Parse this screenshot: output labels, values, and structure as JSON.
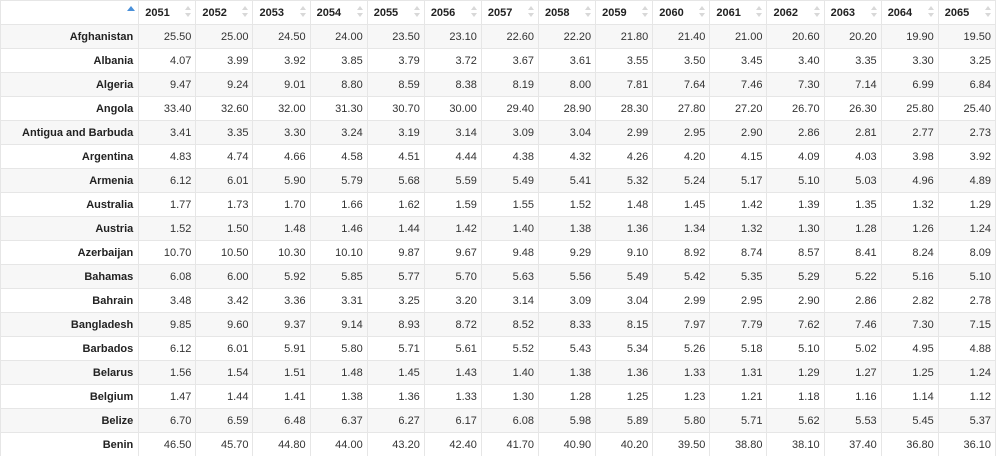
{
  "table": {
    "columns": [
      "2051",
      "2052",
      "2053",
      "2054",
      "2055",
      "2056",
      "2057",
      "2058",
      "2059",
      "2060",
      "2061",
      "2062",
      "2063",
      "2064",
      "2065"
    ],
    "rows": [
      {
        "name": "Afghanistan",
        "values": [
          "25.50",
          "25.00",
          "24.50",
          "24.00",
          "23.50",
          "23.10",
          "22.60",
          "22.20",
          "21.80",
          "21.40",
          "21.00",
          "20.60",
          "20.20",
          "19.90",
          "19.50"
        ]
      },
      {
        "name": "Albania",
        "values": [
          "4.07",
          "3.99",
          "3.92",
          "3.85",
          "3.79",
          "3.72",
          "3.67",
          "3.61",
          "3.55",
          "3.50",
          "3.45",
          "3.40",
          "3.35",
          "3.30",
          "3.25"
        ]
      },
      {
        "name": "Algeria",
        "values": [
          "9.47",
          "9.24",
          "9.01",
          "8.80",
          "8.59",
          "8.38",
          "8.19",
          "8.00",
          "7.81",
          "7.64",
          "7.46",
          "7.30",
          "7.14",
          "6.99",
          "6.84"
        ]
      },
      {
        "name": "Angola",
        "values": [
          "33.40",
          "32.60",
          "32.00",
          "31.30",
          "30.70",
          "30.00",
          "29.40",
          "28.90",
          "28.30",
          "27.80",
          "27.20",
          "26.70",
          "26.30",
          "25.80",
          "25.40"
        ]
      },
      {
        "name": "Antigua and Barbuda",
        "values": [
          "3.41",
          "3.35",
          "3.30",
          "3.24",
          "3.19",
          "3.14",
          "3.09",
          "3.04",
          "2.99",
          "2.95",
          "2.90",
          "2.86",
          "2.81",
          "2.77",
          "2.73"
        ]
      },
      {
        "name": "Argentina",
        "values": [
          "4.83",
          "4.74",
          "4.66",
          "4.58",
          "4.51",
          "4.44",
          "4.38",
          "4.32",
          "4.26",
          "4.20",
          "4.15",
          "4.09",
          "4.03",
          "3.98",
          "3.92"
        ]
      },
      {
        "name": "Armenia",
        "values": [
          "6.12",
          "6.01",
          "5.90",
          "5.79",
          "5.68",
          "5.59",
          "5.49",
          "5.41",
          "5.32",
          "5.24",
          "5.17",
          "5.10",
          "5.03",
          "4.96",
          "4.89"
        ]
      },
      {
        "name": "Australia",
        "values": [
          "1.77",
          "1.73",
          "1.70",
          "1.66",
          "1.62",
          "1.59",
          "1.55",
          "1.52",
          "1.48",
          "1.45",
          "1.42",
          "1.39",
          "1.35",
          "1.32",
          "1.29"
        ]
      },
      {
        "name": "Austria",
        "values": [
          "1.52",
          "1.50",
          "1.48",
          "1.46",
          "1.44",
          "1.42",
          "1.40",
          "1.38",
          "1.36",
          "1.34",
          "1.32",
          "1.30",
          "1.28",
          "1.26",
          "1.24"
        ]
      },
      {
        "name": "Azerbaijan",
        "values": [
          "10.70",
          "10.50",
          "10.30",
          "10.10",
          "9.87",
          "9.67",
          "9.48",
          "9.29",
          "9.10",
          "8.92",
          "8.74",
          "8.57",
          "8.41",
          "8.24",
          "8.09"
        ]
      },
      {
        "name": "Bahamas",
        "values": [
          "6.08",
          "6.00",
          "5.92",
          "5.85",
          "5.77",
          "5.70",
          "5.63",
          "5.56",
          "5.49",
          "5.42",
          "5.35",
          "5.29",
          "5.22",
          "5.16",
          "5.10"
        ]
      },
      {
        "name": "Bahrain",
        "values": [
          "3.48",
          "3.42",
          "3.36",
          "3.31",
          "3.25",
          "3.20",
          "3.14",
          "3.09",
          "3.04",
          "2.99",
          "2.95",
          "2.90",
          "2.86",
          "2.82",
          "2.78"
        ]
      },
      {
        "name": "Bangladesh",
        "values": [
          "9.85",
          "9.60",
          "9.37",
          "9.14",
          "8.93",
          "8.72",
          "8.52",
          "8.33",
          "8.15",
          "7.97",
          "7.79",
          "7.62",
          "7.46",
          "7.30",
          "7.15"
        ]
      },
      {
        "name": "Barbados",
        "values": [
          "6.12",
          "6.01",
          "5.91",
          "5.80",
          "5.71",
          "5.61",
          "5.52",
          "5.43",
          "5.34",
          "5.26",
          "5.18",
          "5.10",
          "5.02",
          "4.95",
          "4.88"
        ]
      },
      {
        "name": "Belarus",
        "values": [
          "1.56",
          "1.54",
          "1.51",
          "1.48",
          "1.45",
          "1.43",
          "1.40",
          "1.38",
          "1.36",
          "1.33",
          "1.31",
          "1.29",
          "1.27",
          "1.25",
          "1.24"
        ]
      },
      {
        "name": "Belgium",
        "values": [
          "1.47",
          "1.44",
          "1.41",
          "1.38",
          "1.36",
          "1.33",
          "1.30",
          "1.28",
          "1.25",
          "1.23",
          "1.21",
          "1.18",
          "1.16",
          "1.14",
          "1.12"
        ]
      },
      {
        "name": "Belize",
        "values": [
          "6.70",
          "6.59",
          "6.48",
          "6.37",
          "6.27",
          "6.17",
          "6.08",
          "5.98",
          "5.89",
          "5.80",
          "5.71",
          "5.62",
          "5.53",
          "5.45",
          "5.37"
        ]
      },
      {
        "name": "Benin",
        "values": [
          "46.50",
          "45.70",
          "44.80",
          "44.00",
          "43.20",
          "42.40",
          "41.70",
          "40.90",
          "40.20",
          "39.50",
          "38.80",
          "38.10",
          "37.40",
          "36.80",
          "36.10"
        ]
      }
    ]
  }
}
